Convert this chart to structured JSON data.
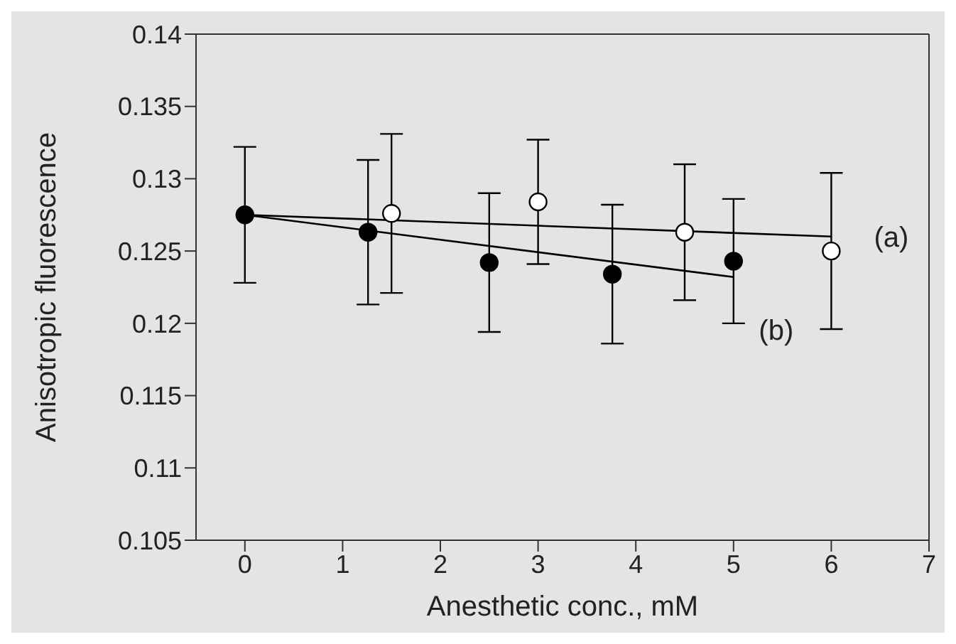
{
  "chart_data": {
    "type": "scatter",
    "xlabel": "Anesthetic conc., mM",
    "ylabel": "Anisotropic  fluorescence",
    "xlim": [
      -0.5,
      7
    ],
    "xticks": [
      0,
      1,
      2,
      3,
      4,
      5,
      6,
      7
    ],
    "ylim": [
      0.105,
      0.14
    ],
    "yticks": [
      0.105,
      0.11,
      0.115,
      0.12,
      0.125,
      0.13,
      0.135,
      0.14
    ],
    "series": [
      {
        "color": "#ffffff",
        "marker": "circle",
        "x": [
          1.5,
          3,
          4.5,
          6
        ],
        "values": [
          0.1276,
          0.1284,
          0.1263,
          0.125
        ],
        "errors": [
          0.0055,
          0.0043,
          0.0047,
          0.0054
        ]
      },
      {
        "color": "#000000",
        "marker": "circle",
        "x": [
          0,
          1.26,
          2.5,
          3.76,
          5
        ],
        "values": [
          0.1275,
          0.1263,
          0.1242,
          0.1234,
          0.1243
        ],
        "errors": [
          0.0047,
          0.005,
          0.0048,
          0.0048,
          0.0043
        ]
      },
      {
        "type": "line",
        "color": "#000000",
        "x": [
          0,
          6
        ],
        "values": [
          0.1275,
          0.126
        ]
      },
      {
        "type": "line",
        "color": "#000000",
        "x": [
          0,
          5
        ],
        "values": [
          0.1275,
          0.1232
        ]
      }
    ],
    "annotations": [
      "(a)",
      "(b)"
    ]
  }
}
